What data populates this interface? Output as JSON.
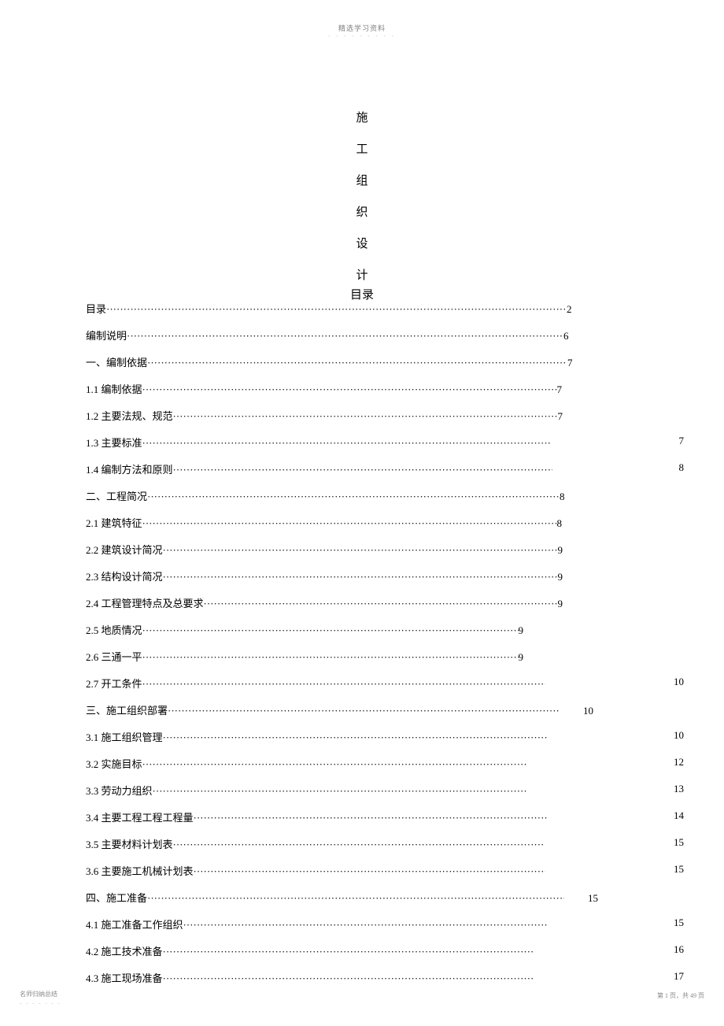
{
  "header": {
    "text": "精选学习资料",
    "dashes": "- - - - - - - - -"
  },
  "vertical_title": [
    "施",
    "工",
    "组",
    "织",
    "设",
    "计"
  ],
  "toc_heading": "目录",
  "toc": [
    {
      "label": "目录 ",
      "dotsWidth": 585,
      "page": "2",
      "pos": "inline"
    },
    {
      "label": "编制说明 ",
      "dotsWidth": 555,
      "page": "6",
      "pos": "inline"
    },
    {
      "label": "一、编制依据 ",
      "dotsWidth": 534,
      "page": "7",
      "pos": "inline"
    },
    {
      "label": "1.1 编制依据  ",
      "dotsWidth": 527,
      "page": "7",
      "pos": "inline"
    },
    {
      "label": "1.2 主要法规、规范  ",
      "dotsWidth": 489,
      "page": "7",
      "pos": "inline"
    },
    {
      "label": "1.3 主要标准  ",
      "dotsWidth": 520,
      "page": "7",
      "pos": "right"
    },
    {
      "label": "1.4 编制方法和原则  ",
      "dotsWidth": 482,
      "page": "8",
      "pos": "right"
    },
    {
      "label": "二、工程简况  ",
      "dotsWidth": 524,
      "page": "8",
      "pos": "inline"
    },
    {
      "label": "2.1 建筑特征  ",
      "dotsWidth": 527,
      "page": "8",
      "pos": "inline"
    },
    {
      "label": "2.2 建筑设计简况  ",
      "dotsWidth": 502,
      "page": "9",
      "pos": "inline"
    },
    {
      "label": "2.3 结构设计简况  ",
      "dotsWidth": 502,
      "page": "9",
      "pos": "inline"
    },
    {
      "label": "2.4 工程管理特点及总要求  ",
      "dotsWidth": 450,
      "page": "9",
      "pos": "inline"
    },
    {
      "label": "2.5 地质情况  ",
      "dotsWidth": 478,
      "page": "9",
      "pos": "inline"
    },
    {
      "label": "2.6 三通一平  ",
      "dotsWidth": 478,
      "page": "9",
      "pos": "inline"
    },
    {
      "label": "2.7 开工条件 ",
      "dotsWidth": 512,
      "page": "10",
      "pos": "right"
    },
    {
      "label": "三、施工组织部署  ",
      "dotsWidth": 498,
      "page": "10",
      "pos": "mid"
    },
    {
      "label": "3.1 施工组织管理  ",
      "dotsWidth": 490,
      "page": "10",
      "pos": "right"
    },
    {
      "label": "3.2 实施目标 ",
      "dotsWidth": 490,
      "page": "12",
      "pos": "right"
    },
    {
      "label": "3.3 劳动力组织 ",
      "dotsWidth": 477,
      "page": "13",
      "pos": "right"
    },
    {
      "label": "3.4 主要工程工程工程量  ",
      "dotsWidth": 450,
      "page": "14",
      "pos": "right"
    },
    {
      "label": "3.5 主要材料计划表  ",
      "dotsWidth": 472,
      "page": "15",
      "pos": "right"
    },
    {
      "label": "3.6 主要施工机械计划表  ",
      "dotsWidth": 447,
      "page": "15",
      "pos": "right"
    },
    {
      "label": "四、施工准备  ",
      "dotsWidth": 530,
      "page": "15",
      "pos": "mid"
    },
    {
      "label": "4.1 施工准备工作组织  ",
      "dotsWidth": 462,
      "page": "15",
      "pos": "right"
    },
    {
      "label": "4.2 施工技术准备  ",
      "dotsWidth": 470,
      "page": "16",
      "pos": "right"
    },
    {
      "label": "4.3 施工现场准备  ",
      "dotsWidth": 470,
      "page": "17",
      "pos": "right"
    }
  ],
  "footer": {
    "left": "名师归纳总结",
    "left_dashes": "- - - - - - -",
    "right": "第 1 页，共 49 页"
  }
}
